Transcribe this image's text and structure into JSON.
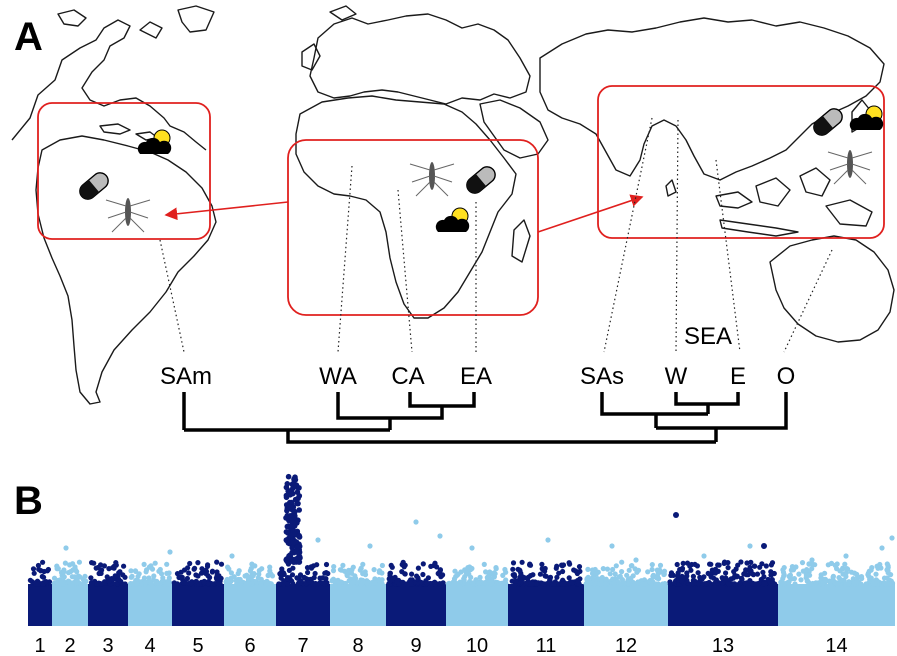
{
  "panels": {
    "a_label": "A",
    "b_label": "B"
  },
  "regions": {
    "sam": "SAm",
    "wa": "WA",
    "ca": "CA",
    "ea": "EA",
    "sas": "SAs",
    "sea": "SEA",
    "sea_w": "W",
    "sea_e": "E",
    "o": "O"
  },
  "icons": [
    "mosquito-icon",
    "pill-capsule-icon",
    "cloud-sun-icon"
  ],
  "colors": {
    "box": "#e0201e",
    "dark_band": "#0a1a78",
    "light_band": "#8fcbea"
  },
  "chart_data": {
    "type": "scatter",
    "chromosomes": [
      "1",
      "2",
      "3",
      "4",
      "5",
      "6",
      "7",
      "8",
      "9",
      "10",
      "11",
      "12",
      "13",
      "14"
    ],
    "peak_chromosome": "7",
    "legend": "none",
    "grid": false
  }
}
